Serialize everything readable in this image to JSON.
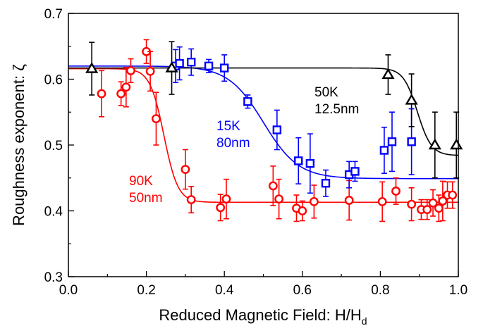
{
  "chart_data": {
    "type": "scatter",
    "xlabel": "Reduced Magnetic Field: H/H",
    "xlabel_subscript": "d",
    "ylabel": "Roughness exponent: ζ",
    "xlim": [
      0.0,
      1.0
    ],
    "ylim": [
      0.3,
      0.7
    ],
    "x_ticks": [
      "0.0",
      "0.2",
      "0.4",
      "0.6",
      "0.8",
      "1.0"
    ],
    "y_ticks": [
      "0.3",
      "0.4",
      "0.5",
      "0.6",
      "0.7"
    ],
    "grid": false,
    "series": [
      {
        "label_lines": [
          "90K",
          "50nm"
        ],
        "color": "#ff0000",
        "marker": "circle",
        "fit": {
          "low": 0.413,
          "high": 0.616,
          "x0": 0.245,
          "width": 0.018
        },
        "points": [
          {
            "x": 0.085,
            "y": 0.578,
            "err": 0.035
          },
          {
            "x": 0.135,
            "y": 0.578,
            "err": 0.018
          },
          {
            "x": 0.148,
            "y": 0.588,
            "err": 0.03
          },
          {
            "x": 0.16,
            "y": 0.613,
            "err": 0.018
          },
          {
            "x": 0.2,
            "y": 0.642,
            "err": 0.018
          },
          {
            "x": 0.21,
            "y": 0.612,
            "err": 0.03
          },
          {
            "x": 0.225,
            "y": 0.54,
            "err": 0.04
          },
          {
            "x": 0.3,
            "y": 0.463,
            "err": 0.03
          },
          {
            "x": 0.315,
            "y": 0.417,
            "err": 0.02
          },
          {
            "x": 0.39,
            "y": 0.405,
            "err": 0.02
          },
          {
            "x": 0.405,
            "y": 0.418,
            "err": 0.03
          },
          {
            "x": 0.525,
            "y": 0.438,
            "err": 0.03
          },
          {
            "x": 0.54,
            "y": 0.418,
            "err": 0.03
          },
          {
            "x": 0.585,
            "y": 0.404,
            "err": 0.02
          },
          {
            "x": 0.6,
            "y": 0.4,
            "err": 0.015
          },
          {
            "x": 0.63,
            "y": 0.414,
            "err": 0.025
          },
          {
            "x": 0.72,
            "y": 0.416,
            "err": 0.03
          },
          {
            "x": 0.805,
            "y": 0.414,
            "err": 0.03
          },
          {
            "x": 0.84,
            "y": 0.43,
            "err": 0.02
          },
          {
            "x": 0.88,
            "y": 0.41,
            "err": 0.025
          },
          {
            "x": 0.905,
            "y": 0.402,
            "err": 0.015
          },
          {
            "x": 0.92,
            "y": 0.402,
            "err": 0.015
          },
          {
            "x": 0.935,
            "y": 0.412,
            "err": 0.02
          },
          {
            "x": 0.95,
            "y": 0.404,
            "err": 0.02
          },
          {
            "x": 0.96,
            "y": 0.415,
            "err": 0.03
          },
          {
            "x": 0.972,
            "y": 0.424,
            "err": 0.02
          },
          {
            "x": 0.985,
            "y": 0.424,
            "err": 0.02
          }
        ]
      },
      {
        "label_lines": [
          "15K",
          "80nm"
        ],
        "color": "#0000ff",
        "marker": "square",
        "fit": {
          "low": 0.449,
          "high": 0.62,
          "x0": 0.5,
          "width": 0.045
        },
        "points": [
          {
            "x": 0.275,
            "y": 0.62,
            "err": 0.025
          },
          {
            "x": 0.285,
            "y": 0.624,
            "err": 0.025
          },
          {
            "x": 0.315,
            "y": 0.626,
            "err": 0.02
          },
          {
            "x": 0.36,
            "y": 0.62,
            "err": 0.01
          },
          {
            "x": 0.4,
            "y": 0.617,
            "err": 0.02
          },
          {
            "x": 0.46,
            "y": 0.566,
            "err": 0.01
          },
          {
            "x": 0.535,
            "y": 0.523,
            "err": 0.03
          },
          {
            "x": 0.59,
            "y": 0.476,
            "err": 0.035
          },
          {
            "x": 0.62,
            "y": 0.472,
            "err": 0.045
          },
          {
            "x": 0.66,
            "y": 0.442,
            "err": 0.02
          },
          {
            "x": 0.72,
            "y": 0.455,
            "err": 0.02
          },
          {
            "x": 0.735,
            "y": 0.46,
            "err": 0.015
          },
          {
            "x": 0.81,
            "y": 0.492,
            "err": 0.035
          },
          {
            "x": 0.83,
            "y": 0.505,
            "err": 0.045
          },
          {
            "x": 0.88,
            "y": 0.505,
            "err": 0.05
          }
        ]
      },
      {
        "label_lines": [
          "50K",
          "12.5nm"
        ],
        "color": "#000000",
        "marker": "triangle",
        "fit": {
          "low": 0.484,
          "high": 0.617,
          "x0": 0.895,
          "width": 0.018
        },
        "points": [
          {
            "x": 0.06,
            "y": 0.616,
            "err": 0.04
          },
          {
            "x": 0.265,
            "y": 0.617,
            "err": 0.04
          },
          {
            "x": 0.82,
            "y": 0.607,
            "err": 0.03
          },
          {
            "x": 0.88,
            "y": 0.568,
            "err": 0.04
          },
          {
            "x": 0.94,
            "y": 0.5,
            "err": 0.05
          },
          {
            "x": 0.995,
            "y": 0.5,
            "err": 0.05
          }
        ]
      }
    ]
  }
}
